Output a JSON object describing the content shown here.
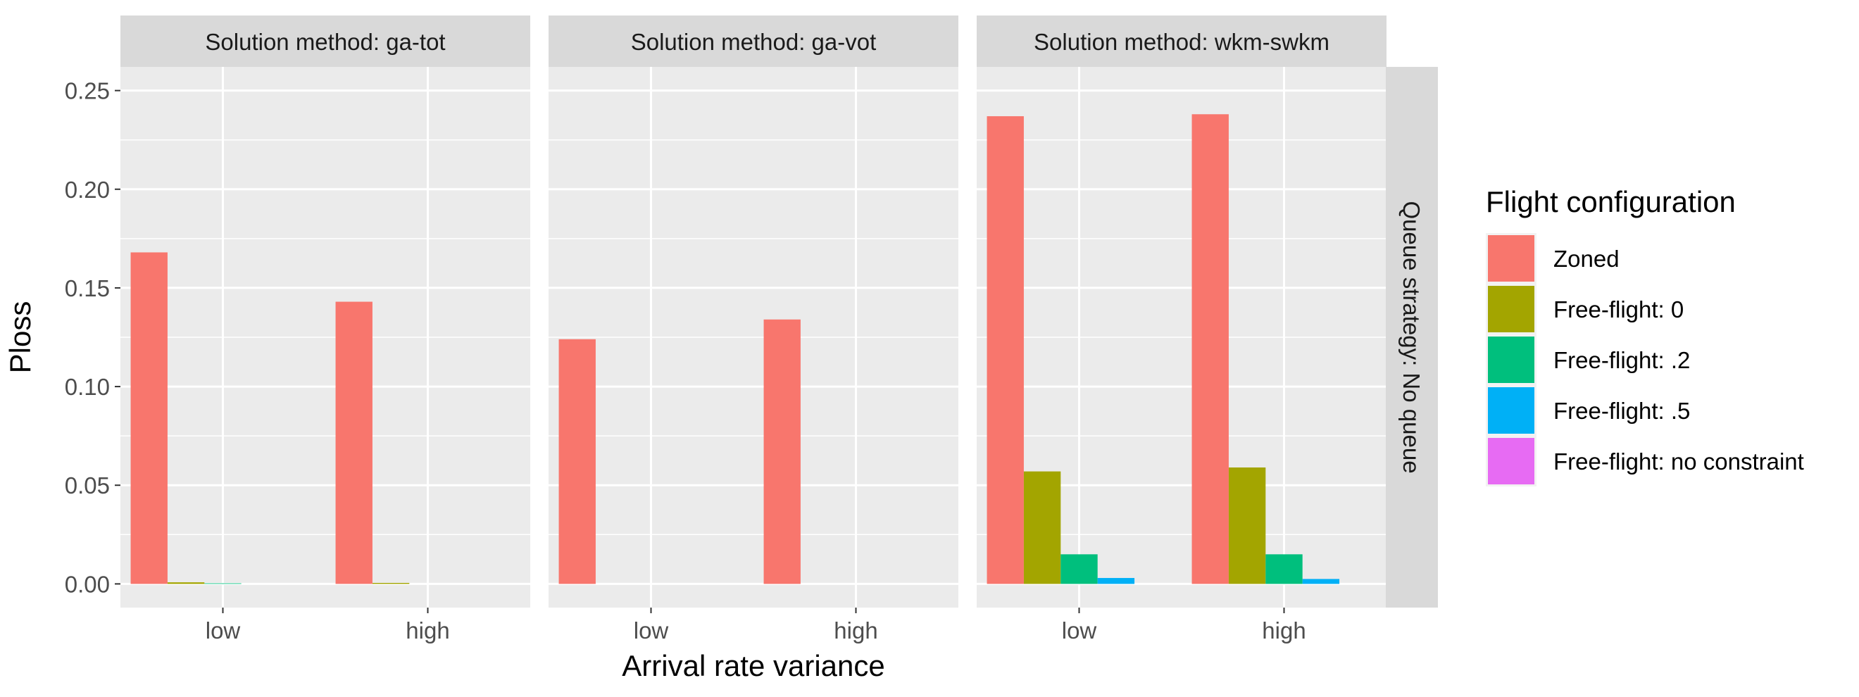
{
  "chart_data": {
    "type": "bar",
    "facet_rows": [
      "Queue strategy: No queue"
    ],
    "panels": [
      {
        "strip": "Solution method: ga-tot",
        "categories": [
          "low",
          "high"
        ],
        "series": [
          {
            "name": "Zoned",
            "values": [
              0.168,
              0.143
            ]
          },
          {
            "name": "Free-flight: 0",
            "values": [
              0.0008,
              0.0005
            ]
          },
          {
            "name": "Free-flight: .2",
            "values": [
              0.0003,
              0.0
            ]
          },
          {
            "name": "Free-flight: .5",
            "values": [
              0.0,
              0.0
            ]
          },
          {
            "name": "Free-flight: no constraint",
            "values": [
              0.0,
              0.0
            ]
          }
        ]
      },
      {
        "strip": "Solution method: ga-vot",
        "categories": [
          "low",
          "high"
        ],
        "series": [
          {
            "name": "Zoned",
            "values": [
              0.124,
              0.134
            ]
          },
          {
            "name": "Free-flight: 0",
            "values": [
              0.0,
              0.0
            ]
          },
          {
            "name": "Free-flight: .2",
            "values": [
              0.0,
              0.0
            ]
          },
          {
            "name": "Free-flight: .5",
            "values": [
              0.0,
              0.0
            ]
          },
          {
            "name": "Free-flight: no constraint",
            "values": [
              0.0,
              0.0
            ]
          }
        ]
      },
      {
        "strip": "Solution method: wkm-swkm",
        "categories": [
          "low",
          "high"
        ],
        "series": [
          {
            "name": "Zoned",
            "values": [
              0.237,
              0.238
            ]
          },
          {
            "name": "Free-flight: 0",
            "values": [
              0.057,
              0.059
            ]
          },
          {
            "name": "Free-flight: .2",
            "values": [
              0.015,
              0.015
            ]
          },
          {
            "name": "Free-flight: .5",
            "values": [
              0.003,
              0.0025
            ]
          },
          {
            "name": "Free-flight: no constraint",
            "values": [
              0.0,
              0.0
            ]
          }
        ]
      }
    ],
    "colors": [
      "#F8766D",
      "#A3A500",
      "#00BF7D",
      "#00B0F6",
      "#E76BF3"
    ],
    "xlabel": "Arrival rate variance",
    "ylabel": "Ploss",
    "ylim": [
      -0.012,
      0.262
    ],
    "yticks": [
      0,
      0.05,
      0.1,
      0.15,
      0.2,
      0.25
    ],
    "ytick_labels": [
      "0.00",
      "0.05",
      "0.10",
      "0.15",
      "0.20",
      "0.25"
    ],
    "legend": {
      "title": "Flight configuration",
      "entries": [
        "Zoned",
        "Free-flight: 0",
        "Free-flight: .2",
        "Free-flight: .5",
        "Free-flight: no constraint"
      ],
      "position": "right"
    },
    "grid": true
  }
}
